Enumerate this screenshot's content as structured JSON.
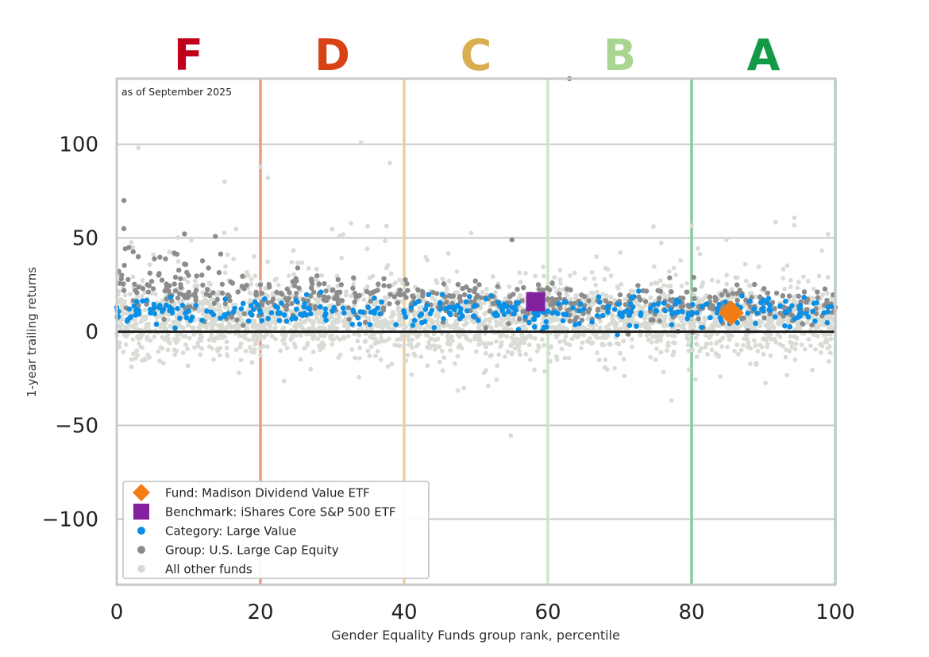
{
  "chart_data": {
    "type": "scatter",
    "xlabel": "Gender Equality Funds group rank, percentile",
    "ylabel": "1-year trailing returns",
    "annotation": "as of September 2025",
    "xlim": [
      0,
      100
    ],
    "ylim": [
      -135,
      135
    ],
    "xticks": [
      "0",
      "20",
      "40",
      "60",
      "80",
      "100"
    ],
    "yticks": [
      "100",
      "50",
      "0",
      "−50",
      "−100"
    ],
    "grid": "horizontal",
    "legend_position": "lower-left",
    "grade_bands": [
      {
        "label": "F",
        "from": 0,
        "to": 20,
        "color": "#c0001a",
        "line_color": "#ee9a80"
      },
      {
        "label": "D",
        "from": 20,
        "to": 40,
        "color": "#d84315",
        "line_color": "#eccf9e"
      },
      {
        "label": "C",
        "from": 40,
        "to": 60,
        "color": "#d9ae4f",
        "line_color": "#cfe6c4"
      },
      {
        "label": "B",
        "from": 60,
        "to": 80,
        "color": "#a8d690",
        "line_color": "#86cc9e"
      },
      {
        "label": "A",
        "from": 80,
        "to": 100,
        "color": "#149a46",
        "line_color": "#8ed3a8"
      }
    ],
    "series": [
      {
        "name": "Fund: Madison Dividend Value ETF",
        "marker": "diamond",
        "color": "#f47c14",
        "points": [
          [
            85.5,
            10
          ]
        ]
      },
      {
        "name": "Benchmark: iShares Core S&P 500 ETF",
        "marker": "square",
        "color": "#82209e",
        "points": [
          [
            58.3,
            16
          ]
        ]
      },
      {
        "name": "Category: Large Value",
        "marker": "dot",
        "color": "#0a8fe6",
        "count": 320,
        "sample_points": [
          [
            2,
            8
          ],
          [
            6,
            14
          ],
          [
            10,
            11
          ],
          [
            15,
            9
          ],
          [
            20,
            10
          ],
          [
            25,
            12
          ],
          [
            30,
            11
          ],
          [
            35,
            13
          ],
          [
            40,
            10
          ],
          [
            45,
            12
          ],
          [
            50,
            14
          ],
          [
            55,
            13
          ],
          [
            60,
            11
          ],
          [
            65,
            12
          ],
          [
            70,
            10
          ],
          [
            75,
            11
          ],
          [
            80,
            9
          ],
          [
            85,
            10
          ],
          [
            90,
            11
          ],
          [
            95,
            12
          ],
          [
            99,
            13
          ]
        ]
      },
      {
        "name": "Group: U.S. Large Cap Equity",
        "marker": "dot",
        "color": "#8c8c8c",
        "count": 520,
        "sample_points": [
          [
            1,
            70
          ],
          [
            1,
            55
          ],
          [
            3,
            40
          ],
          [
            8,
            42
          ],
          [
            10,
            30
          ],
          [
            20,
            25
          ],
          [
            30,
            22
          ],
          [
            40,
            20
          ],
          [
            50,
            18
          ],
          [
            55,
            49
          ],
          [
            60,
            17
          ],
          [
            63,
            135
          ],
          [
            70,
            15
          ],
          [
            80,
            14
          ],
          [
            90,
            15
          ],
          [
            100,
            13
          ]
        ]
      },
      {
        "name": "All other funds",
        "marker": "dot",
        "color": "#d8dcd5",
        "count": 2600,
        "sample_points": [
          [
            3,
            98
          ],
          [
            15,
            80
          ],
          [
            20,
            88
          ],
          [
            34,
            101
          ],
          [
            38,
            90
          ],
          [
            4,
            -15
          ],
          [
            17,
            -22
          ],
          [
            27,
            -20
          ],
          [
            55,
            -12
          ],
          [
            75,
            -15
          ],
          [
            90,
            -12
          ],
          [
            99,
            52
          ]
        ]
      }
    ]
  }
}
